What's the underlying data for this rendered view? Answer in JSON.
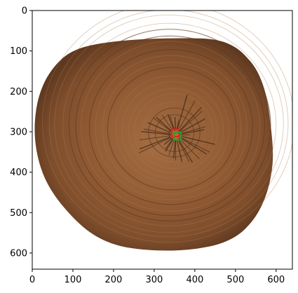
{
  "chart_data": {
    "type": "image",
    "title": "",
    "xlabel": "",
    "ylabel": "",
    "xlim": [
      0,
      640
    ],
    "ylim": [
      640,
      0
    ],
    "x_ticks": [
      0,
      100,
      200,
      300,
      400,
      500,
      600
    ],
    "y_ticks": [
      0,
      100,
      200,
      300,
      400,
      500,
      600
    ],
    "x_tick_labels": [
      "0",
      "100",
      "200",
      "300",
      "400",
      "500",
      "600"
    ],
    "y_tick_labels": [
      "0",
      "100",
      "200",
      "300",
      "400",
      "500",
      "600"
    ],
    "grid": false,
    "image": {
      "subject": "tree trunk cross-section",
      "background_color": "#ffffff",
      "wood_color": "#8c5a34",
      "pith_center": [
        353,
        308
      ]
    },
    "annotations": [
      {
        "shape": "rect",
        "color": "#e8231c",
        "x": [
          343,
          361
        ],
        "y": [
          294,
          312
        ]
      },
      {
        "shape": "rect",
        "color": "#2a9d2a",
        "x": [
          348,
          366
        ],
        "y": [
          302,
          320
        ]
      }
    ]
  }
}
